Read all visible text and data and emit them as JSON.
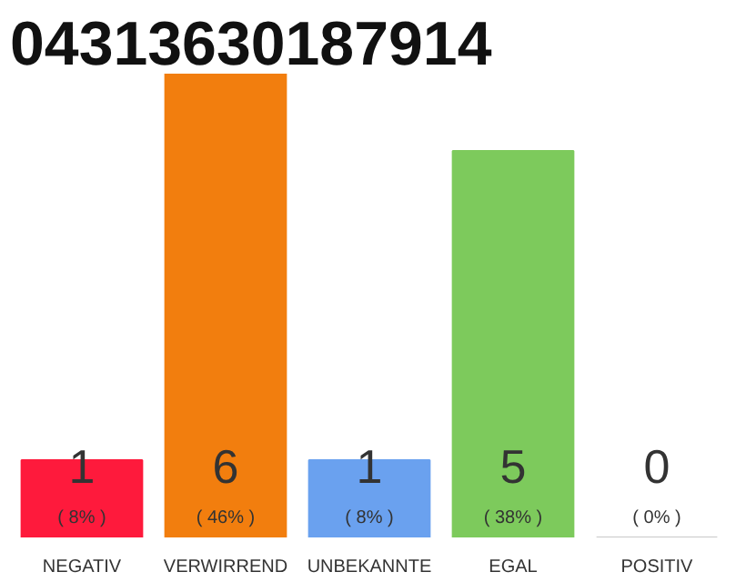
{
  "chart_data": {
    "type": "bar",
    "title": "04313630187914",
    "categories": [
      "NEGATIV",
      "VERWIRREND",
      "UNBEKANNTE",
      "EGAL",
      "POSITIV"
    ],
    "values": [
      1,
      6,
      1,
      5,
      0
    ],
    "colors": [
      "#fe1a3c",
      "#f27e0e",
      "#6aa1ef",
      "#7dca5c",
      "#c8c8c8"
    ],
    "value_labels": [
      "1",
      "6",
      "1",
      "5",
      "0"
    ],
    "annotations": [
      "( 8% )",
      "( 46% )",
      "( 8% )",
      "( 38% )",
      "( 0% )"
    ],
    "grid": false
  }
}
